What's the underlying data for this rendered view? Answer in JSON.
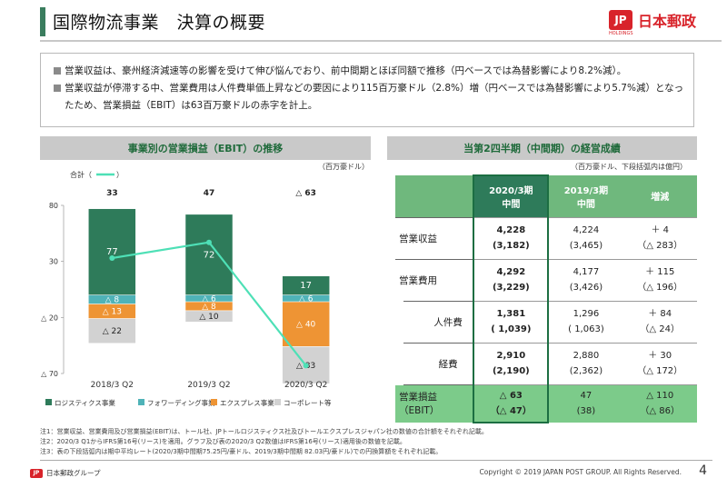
{
  "header": {
    "title": "国際物流事業　決算の概要",
    "logo_mark": "JP",
    "logo_name": "日本郵政",
    "logo_sub": "HOLDINGS"
  },
  "summary": [
    "営業収益は、豪州経済減速等の影響を受けて伸び悩んでおり、前中間期とほぼ同額で推移（円ベースでは為替影響により8.2%減）。",
    "営業収益が停滞する中、営業費用は人件費単価上昇などの要因により115百万豪ドル（2.8%）増（円ベースでは為替影響により5.7%減）となったため、営業損益（EBIT）は63百万豪ドルの赤字を計上。"
  ],
  "left_panel": {
    "title": "事業別の営業損益（EBIT）の推移",
    "unit": "（百万豪ドル）",
    "total_label": "合計（",
    "total_close": "）"
  },
  "chart_data": {
    "type": "bar",
    "stacked": true,
    "title": "事業別の営業損益（EBIT）の推移",
    "categories": [
      "2018/3 Q2",
      "2019/3 Q2",
      "2020/3 Q2"
    ],
    "series": [
      {
        "name": "ロジスティクス事業",
        "values": [
          77,
          72,
          17
        ],
        "labels": [
          "77",
          "72",
          "17"
        ],
        "color": "#2e7b5a"
      },
      {
        "name": "フォワーディング事業",
        "values": [
          -8,
          -6,
          -6
        ],
        "labels": [
          "△ 8",
          "△ 6",
          "△ 6"
        ],
        "color": "#4fb3b8"
      },
      {
        "name": "エクスプレス事業",
        "values": [
          -13,
          -8,
          -40
        ],
        "labels": [
          "△ 13",
          "△ 8",
          "△ 40"
        ],
        "color": "#ee9434"
      },
      {
        "name": "コーポレート等",
        "values": [
          -22,
          -10,
          -33
        ],
        "labels": [
          "△ 22",
          "△ 10",
          "△ 33"
        ],
        "color": "#d2d2d2"
      }
    ],
    "totals": {
      "name": "合計",
      "values": [
        33,
        47,
        -63
      ],
      "labels": [
        "33",
        "47",
        "△ 63"
      ],
      "color": "#4ee0b6"
    },
    "yticks": [
      {
        "v": 80,
        "label": "80"
      },
      {
        "v": 30,
        "label": "30"
      },
      {
        "v": -20,
        "label": "△ 20"
      },
      {
        "v": -70,
        "label": "△ 70"
      }
    ],
    "ylim": [
      -70,
      80
    ]
  },
  "right_panel": {
    "title": "当第2四半期（中間期）の経営成績",
    "unit": "（百万豪ドル、下段括弧内は億円）",
    "columns": [
      "2020/3期\n中間",
      "2019/3期\n中間",
      "増減"
    ],
    "rows": [
      {
        "label": "営業収益",
        "indent": false,
        "cur": [
          "4,228",
          "(3,182)"
        ],
        "prev": [
          "4,224",
          "(3,465)"
        ],
        "diff": [
          "＋ 4",
          "（△ 283）"
        ]
      },
      {
        "label": "営業費用",
        "indent": false,
        "cur": [
          "4,292",
          "(3,229)"
        ],
        "prev": [
          "4,177",
          "(3,426)"
        ],
        "diff": [
          "＋ 115",
          "（△ 196）"
        ]
      },
      {
        "label": "人件費",
        "indent": true,
        "cur": [
          "1,381",
          "( 1,039)"
        ],
        "prev": [
          "1,296",
          "( 1,063)"
        ],
        "diff": [
          "＋ 84",
          "（△ 24）"
        ]
      },
      {
        "label": "経費",
        "indent": true,
        "cur": [
          "2,910",
          "(2,190)"
        ],
        "prev": [
          "2,880",
          "(2,362)"
        ],
        "diff": [
          "＋ 30",
          "（△ 172）"
        ]
      },
      {
        "label": "営業損益\n（EBIT）",
        "indent": false,
        "highlight": true,
        "cur": [
          "△ 63",
          "（△ 47）"
        ],
        "prev": [
          "47",
          "(38)"
        ],
        "diff": [
          "△ 110",
          "（△ 86）"
        ]
      }
    ]
  },
  "notes": [
    "注1：営業収益、営業費用及び営業損益(EBIT)は、トール社、JPトールロジスティクス社及びトールエクスプレスジャパン社の数値の合計額をそれぞれ記載。",
    "注2：2020/3 Q1からIFRS第16号(リース)を適用。グラフ及び表の2020/3 Q2数値はIFRS第16号(リース)適用後の数値を記載。",
    "注3：表の下段括弧内は期中平均レート(2020/3期中間期75.25円/豪ドル、2019/3期中間期 82.03円/豪ドル)での円換算額をそれぞれ記載。"
  ],
  "footer": {
    "group": "日本郵政グループ",
    "copyright": "Copyright © 2019 JAPAN POST GROUP. All Rights Reserved.",
    "page": "4"
  }
}
